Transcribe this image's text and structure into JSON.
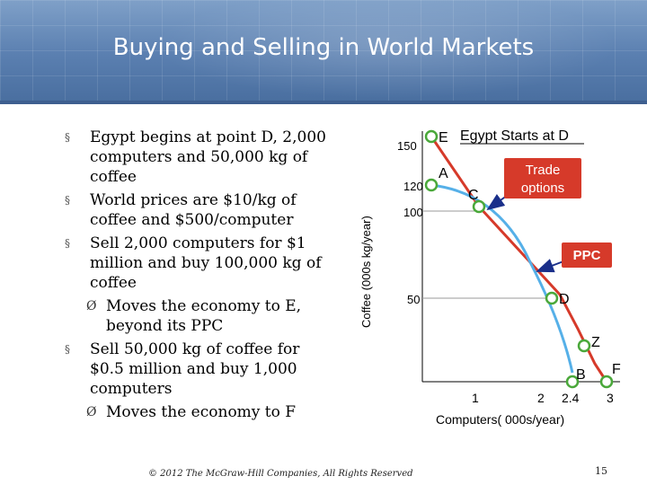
{
  "title": "Buying and Selling in World Markets",
  "bullets": [
    {
      "marker": "§",
      "text": "Egypt begins at point D, 2,000 computers and 50,000 kg of coffee",
      "sub": false
    },
    {
      "marker": "§",
      "text": "World prices are $10/kg of coffee and $500/computer",
      "sub": false
    },
    {
      "marker": "§",
      "text": "Sell 2,000 computers for $1 million and buy 100,000 kg of coffee",
      "sub": false
    },
    {
      "marker": "Ø",
      "text": "Moves the economy to E, beyond its PPC",
      "sub": true
    },
    {
      "marker": "§",
      "text": "Sell 50,000 kg of coffee for $0.5 million and buy 1,000 computers",
      "sub": false
    },
    {
      "marker": "Ø",
      "text": "Moves the economy to F",
      "sub": true
    }
  ],
  "diagram": {
    "heading": "Egypt Starts at D",
    "y_axis_label": "Coffee (000s kg/year)",
    "x_axis_label": "Computers( 000s/year)",
    "y_ticks": [
      "150",
      "120",
      "100",
      "50"
    ],
    "x_ticks": [
      "1",
      "2",
      "2.4",
      "3"
    ],
    "ppc_label": "PPC",
    "trade_label": "Trade options",
    "points": [
      {
        "label": "E",
        "x": 0,
        "y": 150
      },
      {
        "label": "A",
        "x": 0,
        "y": 120
      },
      {
        "label": "C",
        "x": 1,
        "y": 100
      },
      {
        "label": "D",
        "x": 2,
        "y": 50
      },
      {
        "label": "Z",
        "x": 2.2,
        "y": 20
      },
      {
        "label": "B",
        "x": 2.4,
        "y": 0
      },
      {
        "label": "F",
        "x": 3,
        "y": 0
      }
    ],
    "colors": {
      "ppc": "#56b0e8",
      "trade_line": "#d63a2a",
      "point_ring": "#4aa83a",
      "arrow": "#1a2f8a"
    }
  },
  "footer": "© 2012 The McGraw-Hill Companies, All Rights Reserved",
  "page_number": "15"
}
